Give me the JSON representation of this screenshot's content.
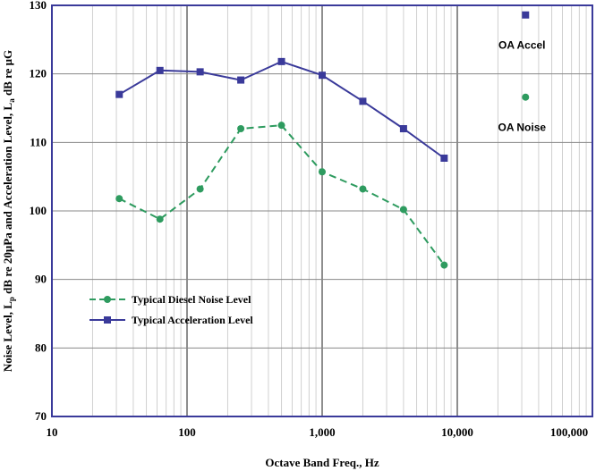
{
  "chart_data": {
    "type": "line",
    "xlabel": "Octave Band Freq., Hz",
    "ylabel_parts": [
      "Noise Level, L",
      "p",
      " dB re 20μPa and Acceleration Level, L",
      "a",
      " dB re μG"
    ],
    "xscale": "log",
    "xlim": [
      10,
      100000
    ],
    "ylim": [
      70,
      130
    ],
    "x_ticks": [
      10,
      100,
      1000,
      10000,
      100000
    ],
    "x_tick_labels": [
      "10",
      "100",
      "1,000",
      "10,000",
      "100,000"
    ],
    "y_ticks": [
      70,
      80,
      90,
      100,
      110,
      120,
      130
    ],
    "y_tick_labels": [
      "70",
      "80",
      "90",
      "100",
      "110",
      "120",
      "130"
    ],
    "grid": true,
    "legend_position": "bottom-left",
    "series": [
      {
        "name": "Typical Diesel Noise Level",
        "color": "#2e9b5f",
        "marker": "circle",
        "line_style": "dashed",
        "x": [
          31.5,
          63,
          125,
          250,
          500,
          1000,
          2000,
          4000,
          8000
        ],
        "y": [
          101.8,
          98.8,
          103.2,
          112.0,
          112.5,
          105.7,
          103.2,
          100.2,
          92.1
        ]
      },
      {
        "name": "Typical Acceleration Level",
        "color": "#3a3a9a",
        "marker": "square",
        "line_style": "solid",
        "x": [
          31.5,
          63,
          125,
          250,
          500,
          1000,
          2000,
          4000,
          8000
        ],
        "y": [
          117.0,
          120.5,
          120.3,
          119.1,
          121.8,
          119.8,
          116.0,
          112.0,
          107.7
        ]
      }
    ],
    "annotations": [
      {
        "label": "OA Accel",
        "marker": "square",
        "color": "#3a3a9a",
        "x": 32000,
        "y": 128.6
      },
      {
        "label": "OA Noise",
        "marker": "circle",
        "color": "#2e9b5f",
        "x": 32000,
        "y": 116.6
      }
    ]
  }
}
